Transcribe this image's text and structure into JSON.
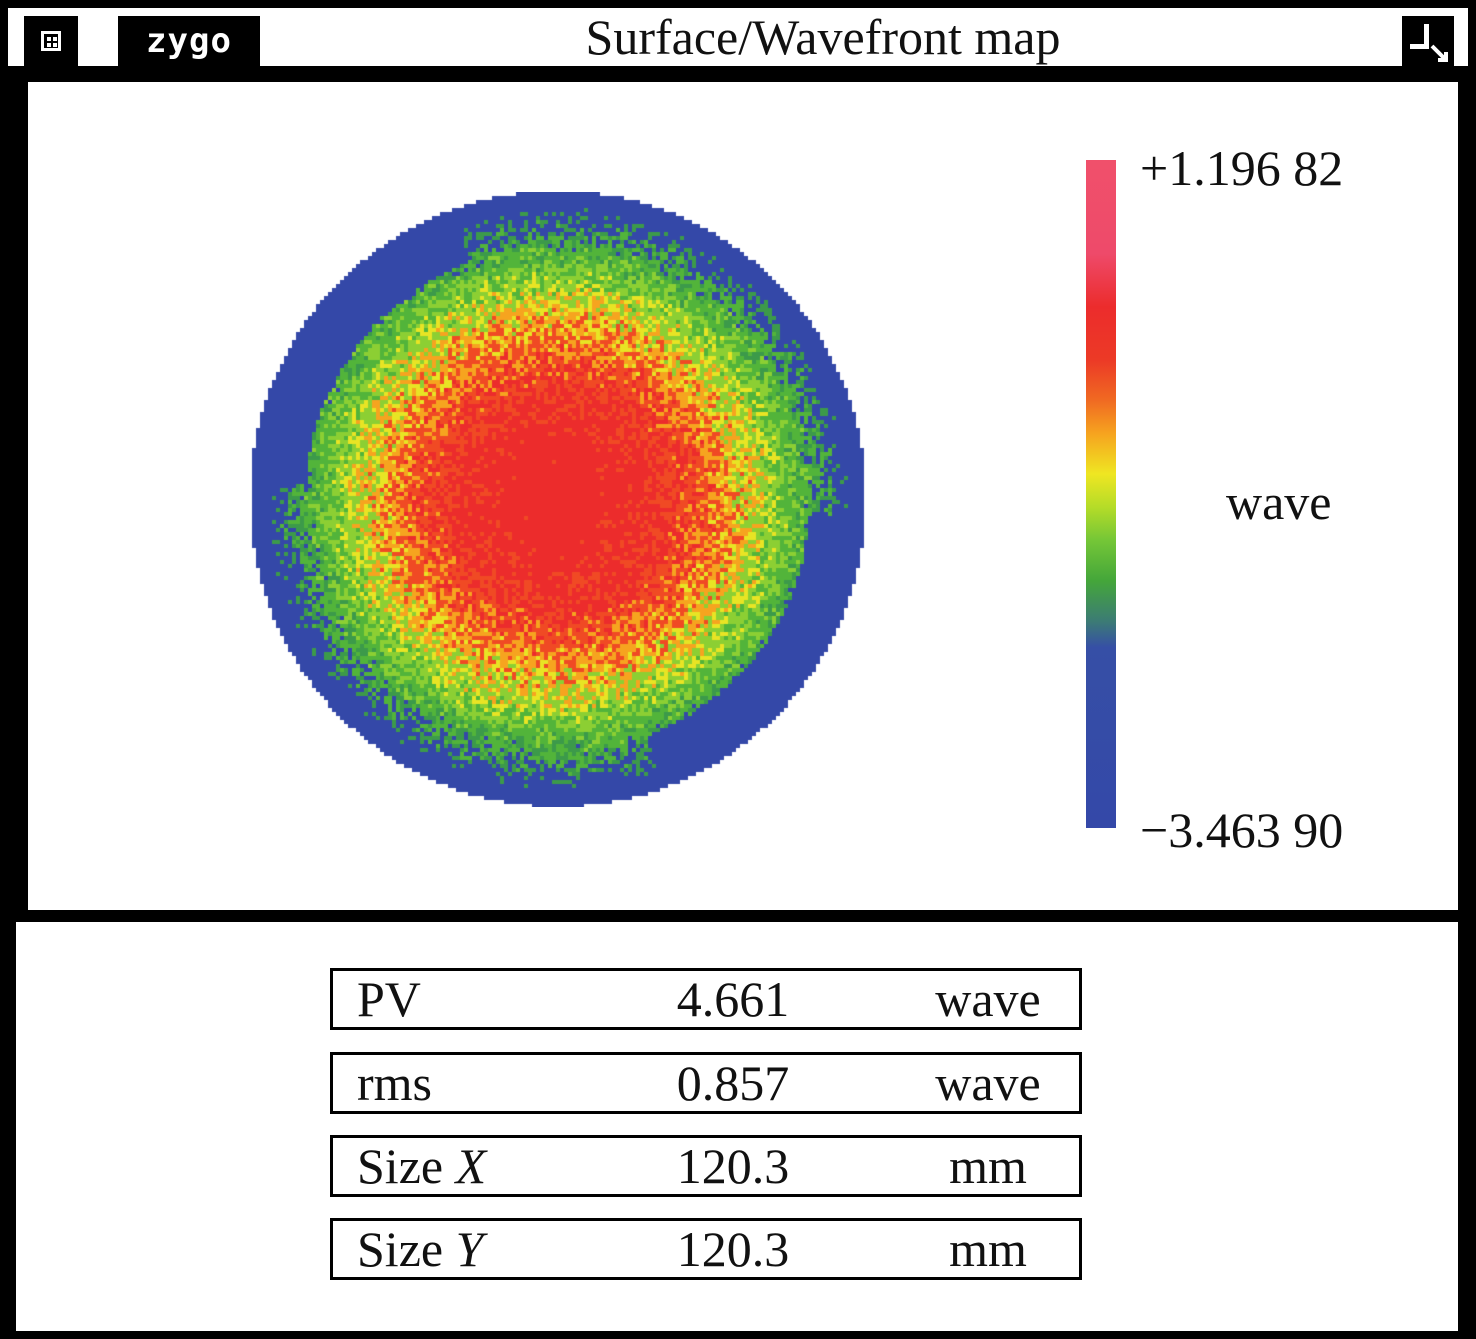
{
  "window": {
    "title": "Surface/Wavefront map",
    "logo_text": "zygo",
    "system_menu_icon": "system-menu-icon",
    "minimize_icon": "minimize-icon"
  },
  "map": {
    "colorbar": {
      "max_label": "+1.196 82",
      "min_label": "−3.463 90",
      "unit": "wave",
      "max": 1.19682,
      "min": -3.4639,
      "colors": [
        "#f0506b",
        "#ec2c2c",
        "#f06a22",
        "#efe622",
        "#74c637",
        "#44a63a",
        "#3448a8"
      ]
    }
  },
  "stats": [
    {
      "label": "PV",
      "label_var": "",
      "value": "4.661",
      "unit": "wave"
    },
    {
      "label": "rms",
      "label_var": "",
      "value": "0.857",
      "unit": "wave"
    },
    {
      "label": "Size ",
      "label_var": "X",
      "value": "120.3",
      "unit": "mm"
    },
    {
      "label": "Size ",
      "label_var": "Y",
      "value": "120.3",
      "unit": "mm"
    }
  ]
}
